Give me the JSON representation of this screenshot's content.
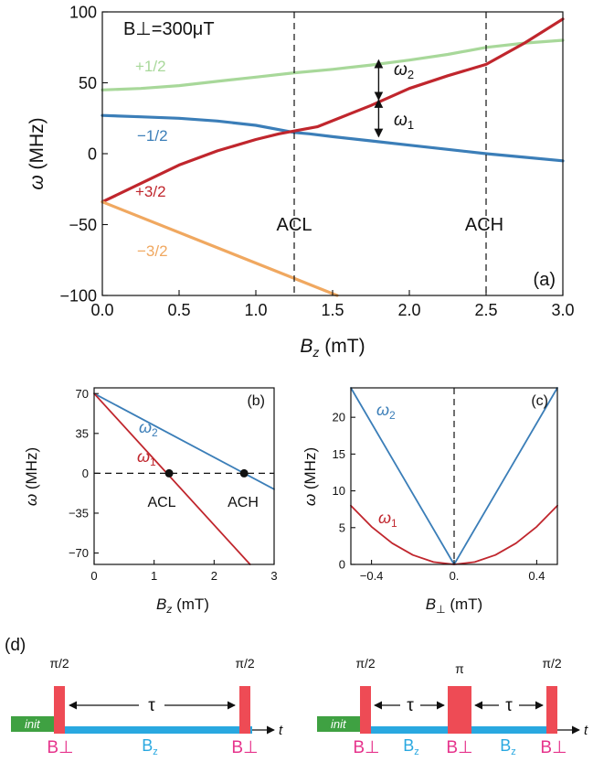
{
  "chart_data": [
    {
      "id": "a",
      "type": "line",
      "panel_label": "(a)",
      "annotation": "B⊥=300μT",
      "xlabel_main": "B",
      "xlabel_sub": "z",
      "xlabel_unit": " (mT)",
      "ylabel_main": "ω",
      "ylabel_unit": " (MHz)",
      "xlim": [
        0,
        3
      ],
      "ylim": [
        -100,
        100
      ],
      "xticks": [
        0,
        0.5,
        1,
        1.5,
        2,
        2.5,
        3
      ],
      "xtick_labels": [
        "0.0",
        "0.5",
        "1.0",
        "1.5",
        "2.0",
        "2.5",
        "3.0"
      ],
      "yticks": [
        -100,
        -50,
        0,
        50,
        100
      ],
      "ytick_labels": [
        "−100",
        "−50",
        "0",
        "50",
        "100"
      ],
      "vlines": [
        {
          "x": 1.25,
          "label": "ACL"
        },
        {
          "x": 2.5,
          "label": "ACH"
        }
      ],
      "arrows": [
        {
          "x": 1.8,
          "y_from": 38,
          "y_to": 66,
          "label_main": "ω",
          "label_sub": "2"
        },
        {
          "x": 1.8,
          "y_from": 12,
          "y_to": 38,
          "label_main": "ω",
          "label_sub": "1"
        }
      ],
      "series": [
        {
          "name": "+1/2",
          "color": "#a8d89a",
          "x": [
            0,
            0.25,
            0.5,
            0.75,
            1,
            1.25,
            1.5,
            1.75,
            2,
            2.25,
            2.5,
            2.75,
            3
          ],
          "y": [
            45,
            46,
            48,
            51,
            54,
            57,
            59.5,
            62.5,
            66,
            70,
            75,
            78,
            80
          ]
        },
        {
          "name": "−1/2",
          "color": "#3b7eb8",
          "x": [
            0,
            0.25,
            0.5,
            0.75,
            1,
            1.15,
            1.25,
            1.35,
            1.5,
            1.75,
            2,
            2.25,
            2.5,
            2.75,
            3
          ],
          "y": [
            27,
            26,
            25,
            23,
            20,
            17,
            15,
            14,
            12,
            9,
            6,
            3,
            0,
            -2.5,
            -5
          ]
        },
        {
          "name": "+3/2",
          "color": "#c0262d",
          "x": [
            0,
            0.25,
            0.5,
            0.75,
            1,
            1.15,
            1.25,
            1.4,
            1.75,
            2,
            2.25,
            2.5,
            2.75,
            3
          ],
          "y": [
            -34,
            -21,
            -8,
            2,
            10,
            14,
            16,
            19,
            34,
            46,
            55,
            63,
            78,
            95
          ]
        },
        {
          "name": "−3/2",
          "color": "#f0a860",
          "x": [
            0,
            1.53
          ],
          "y": [
            -34,
            -100
          ]
        }
      ],
      "legend_position": "inline labels"
    },
    {
      "id": "b",
      "type": "line",
      "panel_label": "(b)",
      "xlabel_main": "B",
      "xlabel_sub": "z",
      "xlabel_unit": " (mT)",
      "ylabel_main": "ω",
      "ylabel_unit": " (MHz)",
      "xlim": [
        0,
        3
      ],
      "ylim": [
        -80,
        75
      ],
      "xticks": [
        0,
        1,
        2,
        3
      ],
      "xtick_labels": [
        "0",
        "1",
        "2",
        "3"
      ],
      "yticks": [
        70,
        35,
        0,
        -35,
        -70
      ],
      "ytick_labels": [
        "70",
        "35",
        "0",
        "−35",
        "−70"
      ],
      "hline_y": 0,
      "points": [
        {
          "x": 1.25,
          "y": 0,
          "label": "ACL"
        },
        {
          "x": 2.5,
          "y": 0,
          "label": "ACH"
        }
      ],
      "series": [
        {
          "name_main": "ω",
          "name_sub": "2",
          "color": "#3b7eb8",
          "x": [
            0,
            3
          ],
          "y": [
            70,
            -14
          ]
        },
        {
          "name_main": "ω",
          "name_sub": "1",
          "color": "#c0262d",
          "x": [
            0,
            2.6
          ],
          "y": [
            70,
            -80
          ]
        }
      ]
    },
    {
      "id": "c",
      "type": "line",
      "panel_label": "(c)",
      "xlabel_main": "B",
      "xlabel_sub": "⊥",
      "xlabel_unit": " (mT)",
      "ylabel_main": "ω",
      "ylabel_unit": " (MHz)",
      "xlim": [
        -0.5,
        0.5
      ],
      "ylim": [
        0,
        24
      ],
      "xticks": [
        -0.4,
        0,
        0.4
      ],
      "xtick_labels": [
        "−0.4",
        "0.",
        "0.4"
      ],
      "yticks": [
        0,
        5,
        10,
        15,
        20
      ],
      "ytick_labels": [
        "0",
        "5",
        "10",
        "15",
        "20"
      ],
      "vline_x": 0,
      "series": [
        {
          "name_main": "ω",
          "name_sub": "2",
          "color": "#3b7eb8",
          "x": [
            -0.5,
            0,
            0.5
          ],
          "y": [
            24,
            0,
            24
          ]
        },
        {
          "name_main": "ω",
          "name_sub": "1",
          "color": "#c0262d",
          "x": [
            -0.5,
            -0.4,
            -0.3,
            -0.2,
            -0.1,
            0,
            0.1,
            0.2,
            0.3,
            0.4,
            0.5
          ],
          "y": [
            8,
            5.12,
            2.88,
            1.28,
            0.32,
            0,
            0.32,
            1.28,
            2.88,
            5.12,
            8
          ]
        }
      ]
    }
  ],
  "panel_d": {
    "label": "(d)",
    "init_label": "init",
    "t_label": "t",
    "colors": {
      "init": "#3fa142",
      "bz": "#29a8e0",
      "pulse": "#ee4b55",
      "bperp_label": "#e6348c",
      "bz_label": "#29a8e0"
    },
    "left": {
      "pulse_labels": [
        "π/2",
        "π/2"
      ],
      "tau_label": "τ",
      "bperp_labels": [
        "B⊥",
        "B⊥"
      ],
      "bz_labels_main": [
        "B"
      ],
      "bz_labels_sub": [
        "z"
      ]
    },
    "right": {
      "pulse_labels": [
        "π/2",
        "π",
        "π/2"
      ],
      "tau_labels": [
        "τ",
        "τ"
      ],
      "bperp_labels": [
        "B⊥",
        "B⊥",
        "B⊥"
      ],
      "bz_labels_main": [
        "B",
        "B"
      ],
      "bz_labels_sub": [
        "z",
        "z"
      ]
    }
  }
}
